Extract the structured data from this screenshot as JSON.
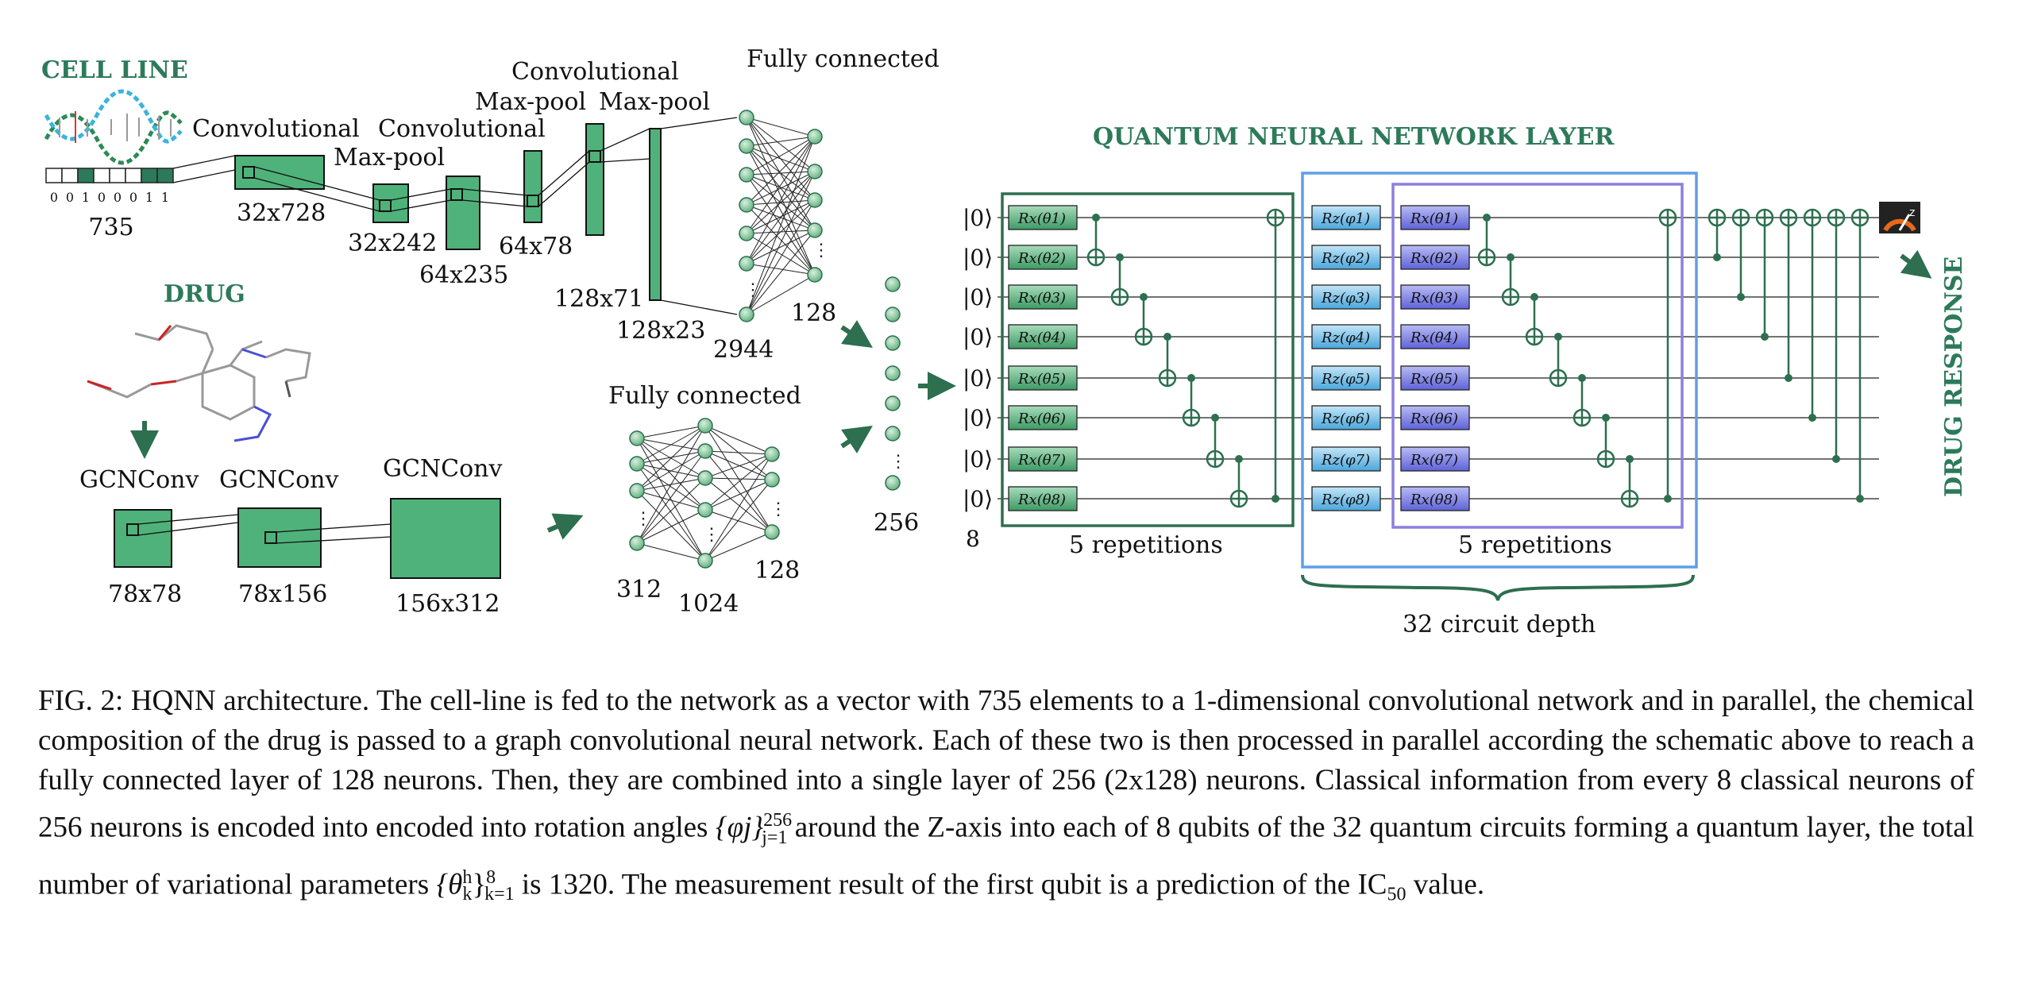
{
  "cell_line": {
    "title": "CELL LINE",
    "bits": [
      "0",
      "0",
      "1",
      "0",
      "0",
      "0",
      "1",
      "1"
    ],
    "input_size": "735",
    "layers": [
      {
        "name": "Convolutional",
        "size": "32x728"
      },
      {
        "name": "Max-pool",
        "size": "32x242"
      },
      {
        "name": "Convolutional",
        "size": "64x235"
      },
      {
        "name": "Max-pool",
        "size": "64x78"
      },
      {
        "name": "Convolutional",
        "size": "128x71"
      },
      {
        "name": "Max-pool",
        "size": "128x23"
      }
    ],
    "fc_title": "Fully connected",
    "fc_in": "2944",
    "fc_out": "128"
  },
  "drug": {
    "title": "DRUG",
    "layers": [
      {
        "name": "GCNConv",
        "size": "78x78"
      },
      {
        "name": "GCNConv",
        "size": "78x156"
      },
      {
        "name": "GCNConv",
        "size": "156x312"
      }
    ],
    "fc_title": "Fully connected",
    "fc_in": "312",
    "fc_mid": "1024",
    "fc_out": "128"
  },
  "merge": {
    "size": "256"
  },
  "quantum": {
    "title": "QUANTUM NEURAL NETWORK LAYER",
    "ket": "|0⟩",
    "qubit_count": "8",
    "block1_label": "5 repetitions",
    "block2_label": "5 repetitions",
    "depth_label": "32 circuit depth",
    "output_label": "DRUG RESPONSE"
  },
  "caption": {
    "p1": "FIG. 2: HQNN architecture. The cell-line is fed to the network as a vector with 735 elements to a 1-dimensional convolutional network and in parallel, the chemical composition of the drug is passed to a graph convolutional neural network. Each of these two is then processed in parallel according the schematic above to reach a fully connected layer of 128 neurons. Then, they are combined into a single layer of 256 (2x128) neurons. Classical information from every 8 classical neurons of 256 neurons is encoded into encoded into rotation angles ",
    "phi_expr": "{φj}",
    "phi_sup": "256",
    "phi_sub": "j=1",
    "p2": " around the Z-axis into each of 8 qubits of the 32 quantum circuits forming a quantum layer, the total number of variational parameters ",
    "theta_expr": "{θ",
    "theta_h": "h",
    "theta_k": "k",
    "theta_close": "}",
    "theta_sup": "8",
    "theta_sub": "k=1",
    "p3": " is 1320. The measurement result of the first qubit is a prediction of the IC",
    "ic_sub": "50",
    "p4": " value."
  },
  "colors": {
    "green": "#4fb27a",
    "dark_green": "#2d6f4f",
    "title_green": "#2d7a5a",
    "blue_gate": "#7fc4ea",
    "purple_gate": "#7f86e4",
    "blue_box": "#5f9ee8",
    "purple_box": "#8c7fe0"
  }
}
